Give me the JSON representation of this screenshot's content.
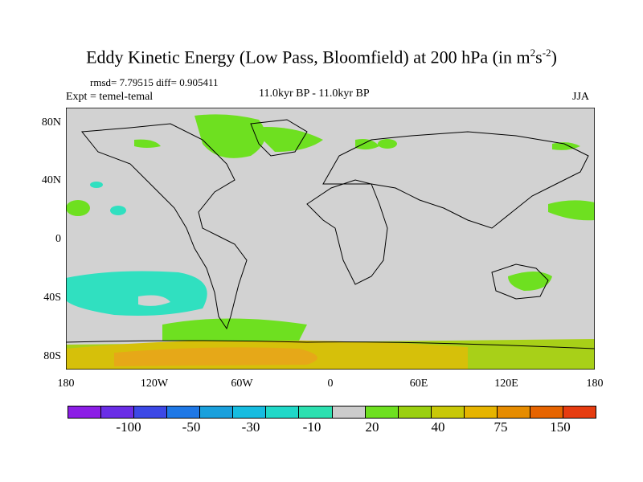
{
  "title": {
    "main": "Eddy Kinetic Energy (Low Pass, Bloomfield) at 200 hPa (in m",
    "sup1": "2",
    "mid": "s",
    "sup2": "-2",
    "end": ")"
  },
  "stats": "rmsd= 7.79515 diff= 0.905411",
  "expt": "Expt = temel-temal",
  "period": "11.0kyr BP - 11.0kyr BP",
  "season": "JJA",
  "y_ticks": [
    "80N",
    "40N",
    "0",
    "40S",
    "80S"
  ],
  "x_ticks": [
    "180",
    "120W",
    "60W",
    "0",
    "60E",
    "120E",
    "180"
  ],
  "colorbar": {
    "colors": [
      "#8c1ee6",
      "#6a2de6",
      "#3c48e6",
      "#1f78e6",
      "#1aa0dc",
      "#16bce0",
      "#20d8c8",
      "#2ce0b0",
      "#cccccc",
      "#6ee020",
      "#9ad010",
      "#c8c808",
      "#e6b400",
      "#e68c00",
      "#e66400",
      "#e63c10"
    ],
    "labels": [
      "-100",
      "-50",
      "-30",
      "-10",
      "20",
      "40",
      "75",
      "150"
    ]
  }
}
